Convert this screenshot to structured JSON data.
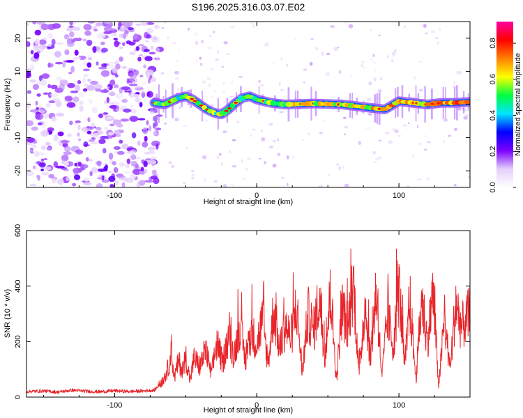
{
  "title": "S196.2025.316.03.07.E02",
  "colors": {
    "snr_line": "#e8252a",
    "axis": "#000000",
    "background": "#ffffff"
  },
  "chart_data": [
    {
      "type": "heatmap",
      "xlabel": "Height of straight line (km)",
      "ylabel": "Frequency (Hz)",
      "xlim": [
        -162,
        150
      ],
      "ylim": [
        -25,
        25
      ],
      "xticks": [
        -100,
        0,
        100
      ],
      "xtick_labels": [
        "-100",
        "0",
        "100"
      ],
      "yticks": [
        -20,
        -10,
        0,
        10,
        20
      ],
      "ytick_labels": [
        "-20",
        "-10",
        "0",
        "10",
        "20"
      ],
      "noise_region_x": [
        -162,
        -72
      ],
      "ridge": [
        {
          "x": -72,
          "y": 0.5
        },
        {
          "x": -65,
          "y": 0.0
        },
        {
          "x": -60,
          "y": 1.0
        },
        {
          "x": -55,
          "y": 2.0
        },
        {
          "x": -50,
          "y": 2.5
        },
        {
          "x": -45,
          "y": 1.5
        },
        {
          "x": -40,
          "y": 0.0
        },
        {
          "x": -35,
          "y": -1.5
        },
        {
          "x": -30,
          "y": -2.5
        },
        {
          "x": -25,
          "y": -3.0
        },
        {
          "x": -20,
          "y": -1.5
        },
        {
          "x": -15,
          "y": 0.5
        },
        {
          "x": -10,
          "y": 2.0
        },
        {
          "x": -5,
          "y": 2.5
        },
        {
          "x": 0,
          "y": 1.5
        },
        {
          "x": 10,
          "y": 0.5
        },
        {
          "x": 20,
          "y": 0.0
        },
        {
          "x": 40,
          "y": 0.3
        },
        {
          "x": 60,
          "y": 0.0
        },
        {
          "x": 80,
          "y": -1.0
        },
        {
          "x": 90,
          "y": -1.5
        },
        {
          "x": 100,
          "y": 1.0
        },
        {
          "x": 110,
          "y": 0.5
        },
        {
          "x": 120,
          "y": 0.0
        },
        {
          "x": 130,
          "y": 0.5
        },
        {
          "x": 140,
          "y": 0.5
        },
        {
          "x": 150,
          "y": 0.8
        }
      ],
      "colorbar": {
        "label": "Normalized spectral amplitude",
        "range": [
          0.0,
          0.92
        ],
        "ticks": [
          0.0,
          0.2,
          0.4,
          0.6,
          0.8
        ],
        "tick_labels": [
          "0.0",
          "0.2",
          "0.4",
          "0.6",
          "0.8"
        ],
        "colormap": [
          "#ffffff",
          "#e4cffb",
          "#7b00ff",
          "#0000ff",
          "#00e5ff",
          "#00ff40",
          "#ffff00",
          "#ff8000",
          "#ff0000",
          "#ff00a0"
        ]
      }
    },
    {
      "type": "line",
      "xlabel": "Height of straight line (km)",
      "ylabel": "SNR (10 * v/v)",
      "xlim": [
        -162,
        150
      ],
      "ylim": [
        0,
        600
      ],
      "xticks": [
        -100,
        0,
        100
      ],
      "xtick_labels": [
        "-100",
        "0",
        "100"
      ],
      "yticks": [
        0,
        200,
        400,
        600
      ],
      "ytick_labels": [
        "0",
        "200",
        "400",
        "600"
      ],
      "series": [
        {
          "name": "SNR",
          "color": "#e8252a",
          "x": [
            -162,
            -150,
            -140,
            -130,
            -120,
            -110,
            -100,
            -90,
            -80,
            -72,
            -66,
            -62,
            -60,
            -58,
            -55,
            -52,
            -50,
            -47,
            -44,
            -40,
            -36,
            -32,
            -28,
            -24,
            -20,
            -16,
            -12,
            -8,
            -4,
            0,
            4,
            8,
            12,
            16,
            20,
            24,
            28,
            32,
            36,
            40,
            44,
            48,
            52,
            56,
            60,
            64,
            68,
            72,
            76,
            80,
            84,
            88,
            92,
            96,
            100,
            104,
            108,
            112,
            116,
            120,
            124,
            128,
            132,
            136,
            140,
            144,
            150
          ],
          "y": [
            20,
            22,
            18,
            25,
            21,
            19,
            23,
            20,
            22,
            25,
            60,
            110,
            160,
            70,
            130,
            90,
            150,
            60,
            140,
            110,
            170,
            80,
            200,
            120,
            220,
            150,
            260,
            130,
            240,
            190,
            280,
            120,
            320,
            170,
            260,
            210,
            330,
            90,
            300,
            240,
            360,
            150,
            380,
            60,
            320,
            250,
            420,
            80,
            340,
            140,
            390,
            70,
            300,
            180,
            400,
            110,
            330,
            60,
            360,
            200,
            380,
            40,
            280,
            100,
            340,
            250,
            300
          ]
        }
      ]
    }
  ]
}
